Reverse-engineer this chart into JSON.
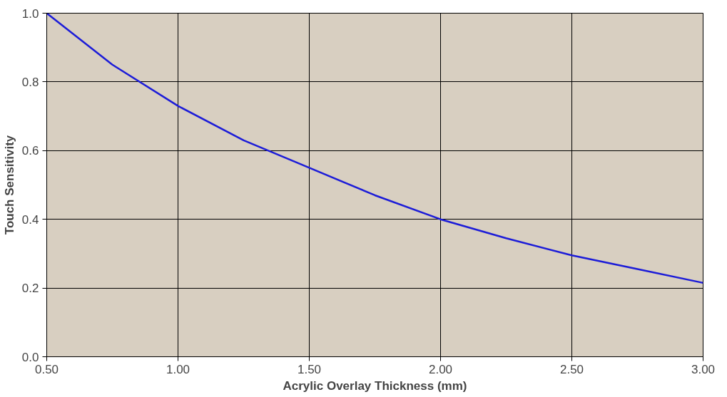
{
  "chart_data": {
    "type": "line",
    "xlabel": "Acrylic Overlay Thickness (mm)",
    "ylabel": "Touch Sensitivity",
    "x": [
      0.5,
      0.75,
      1.0,
      1.25,
      1.5,
      1.75,
      2.0,
      2.25,
      2.5,
      2.75,
      3.0
    ],
    "series": [
      {
        "color": "#1c1cd8",
        "values": [
          1.0,
          0.85,
          0.73,
          0.63,
          0.55,
          0.47,
          0.4,
          0.345,
          0.295,
          0.255,
          0.215
        ]
      }
    ],
    "xlim": [
      0.5,
      3.0
    ],
    "ylim": [
      0.0,
      1.0
    ],
    "xticks": [
      {
        "value": 0.5,
        "label": "0.50"
      },
      {
        "value": 1.0,
        "label": "1.00"
      },
      {
        "value": 1.5,
        "label": "1.50"
      },
      {
        "value": 2.0,
        "label": "2.00"
      },
      {
        "value": 2.5,
        "label": "2.50"
      },
      {
        "value": 3.0,
        "label": "3.00"
      }
    ],
    "yticks": [
      {
        "value": 0.0,
        "label": "0.0"
      },
      {
        "value": 0.2,
        "label": "0.2"
      },
      {
        "value": 0.4,
        "label": "0.4"
      },
      {
        "value": 0.6,
        "label": "0.6"
      },
      {
        "value": 0.8,
        "label": "0.8"
      },
      {
        "value": 1.0,
        "label": "1.0"
      }
    ],
    "grid": true,
    "marker": "none",
    "line_style": "solid"
  }
}
